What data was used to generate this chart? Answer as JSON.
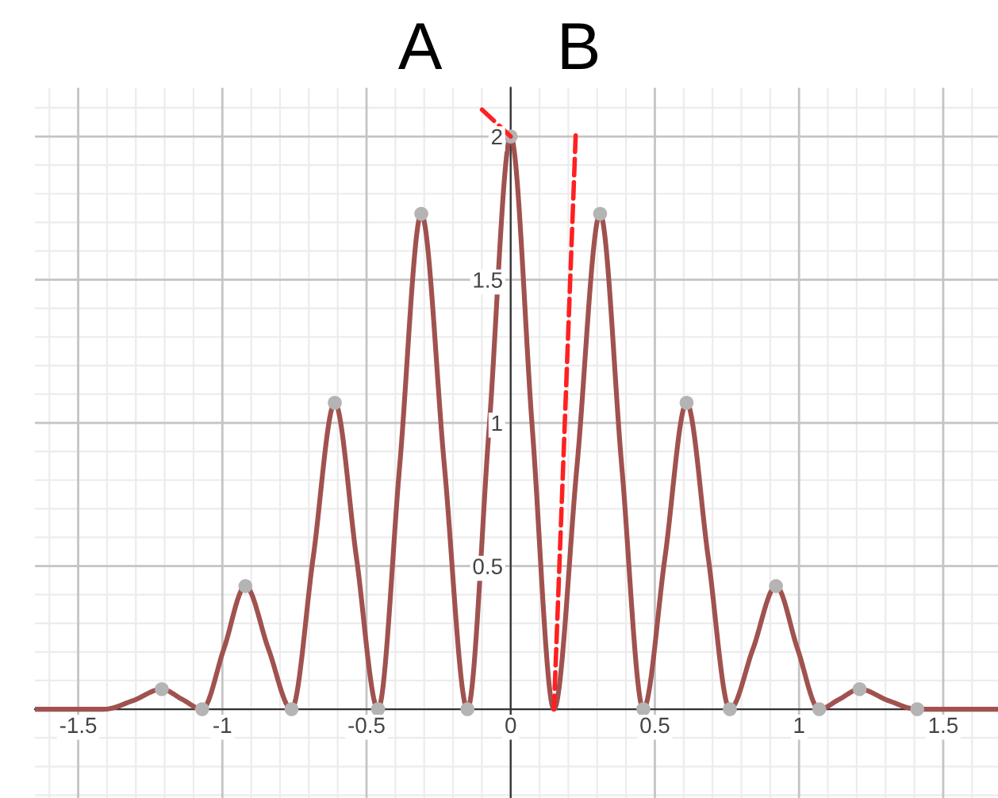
{
  "chart_data": {
    "type": "line",
    "x": [
      -1.65,
      -1.41,
      -1.31,
      -1.21,
      -1.14,
      -1.07,
      -0.995,
      -0.92,
      -0.84,
      -0.76,
      -0.685,
      -0.61,
      -0.535,
      -0.46,
      -0.385,
      -0.31,
      -0.23,
      -0.15,
      -0.075,
      0,
      0.075,
      0.15,
      0.23,
      0.31,
      0.385,
      0.46,
      0.535,
      0.61,
      0.685,
      0.76,
      0.84,
      0.92,
      0.995,
      1.07,
      1.14,
      1.21,
      1.31,
      1.41,
      1.69
    ],
    "series": [
      {
        "color": "#a0524f",
        "values": [
          0,
          0,
          0.03,
          0.07,
          0.035,
          0,
          0.21,
          0.43,
          0.21,
          0,
          0.53,
          1.07,
          0.53,
          0,
          0.85,
          1.73,
          0.85,
          0,
          0.98,
          2.0,
          0.98,
          0,
          0.85,
          1.73,
          0.85,
          0,
          0.53,
          1.07,
          0.53,
          0,
          0.21,
          0.43,
          0.21,
          0,
          0.035,
          0.07,
          0.03,
          0,
          0
        ]
      },
      {
        "type": "scatter",
        "color": "#b4b4b4",
        "x": [
          -1.21,
          -1.07,
          -0.92,
          -0.76,
          -0.61,
          -0.46,
          -0.31,
          -0.15,
          0,
          0.31,
          0.46,
          0.61,
          0.76,
          0.92,
          1.07,
          1.21,
          1.41
        ],
        "values": [
          0.07,
          0,
          0.43,
          0,
          1.07,
          0,
          1.73,
          0,
          2.0,
          1.73,
          0,
          1.07,
          0,
          0.43,
          0,
          0.07,
          0
        ]
      }
    ],
    "xlim": [
      -1.65,
      1.69
    ],
    "ylim": [
      -0.31,
      2.17
    ],
    "xticks": [
      -1.5,
      -1,
      -0.5,
      0,
      0.5,
      1,
      1.5
    ],
    "yticks": [
      0.5,
      1,
      1.5,
      2
    ],
    "grid": true,
    "line_style": "solid",
    "annotations": [
      {
        "text": "A",
        "x": 0,
        "y": 2.0
      },
      {
        "text": "B",
        "x": 0.15,
        "y": 0
      }
    ]
  }
}
